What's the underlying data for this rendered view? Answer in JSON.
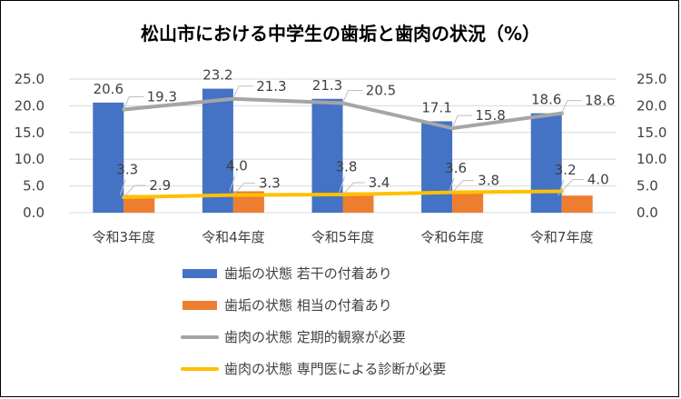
{
  "chart_data": {
    "type": "bar",
    "title": "松山市における中学生の歯垢と歯肉の状況（%）",
    "categories": [
      "令和3年度",
      "令和4年度",
      "令和5年度",
      "令和6年度",
      "令和7年度"
    ],
    "ylim": [
      0,
      25
    ],
    "yticks": [
      "25.0",
      "20.0",
      "15.0",
      "10.0",
      "5.0",
      "0.0"
    ],
    "ytick_values": [
      25,
      20,
      15,
      10,
      5,
      0
    ],
    "grid": true,
    "legend_position": "bottom",
    "series": [
      {
        "name": "歯垢の状態 若干の付着あり",
        "kind": "bar",
        "color": "#4472C4",
        "values": [
          20.6,
          23.2,
          21.3,
          17.1,
          18.6
        ],
        "labels": [
          "20.6",
          "23.2",
          "21.3",
          "17.1",
          "18.6"
        ]
      },
      {
        "name": "歯垢の状態 相当の付着あり",
        "kind": "bar",
        "color": "#ED7D31",
        "values": [
          3.3,
          4.0,
          3.8,
          3.6,
          3.2
        ],
        "labels": [
          "3.3",
          "4.0",
          "3.8",
          "3.6",
          "3.2"
        ]
      },
      {
        "name": "歯肉の状態 定期的観察が必要",
        "kind": "line",
        "color": "#A5A5A5",
        "values": [
          19.3,
          21.3,
          20.5,
          15.8,
          18.6
        ],
        "labels": [
          "19.3",
          "21.3",
          "20.5",
          "15.8",
          "18.6"
        ]
      },
      {
        "name": "歯肉の状態 専門医による診断が必要",
        "kind": "line",
        "color": "#FFC000",
        "values": [
          2.9,
          3.3,
          3.4,
          3.8,
          4.0
        ],
        "labels": [
          "2.9",
          "3.3",
          "3.4",
          "3.8",
          "4.0"
        ]
      }
    ]
  }
}
